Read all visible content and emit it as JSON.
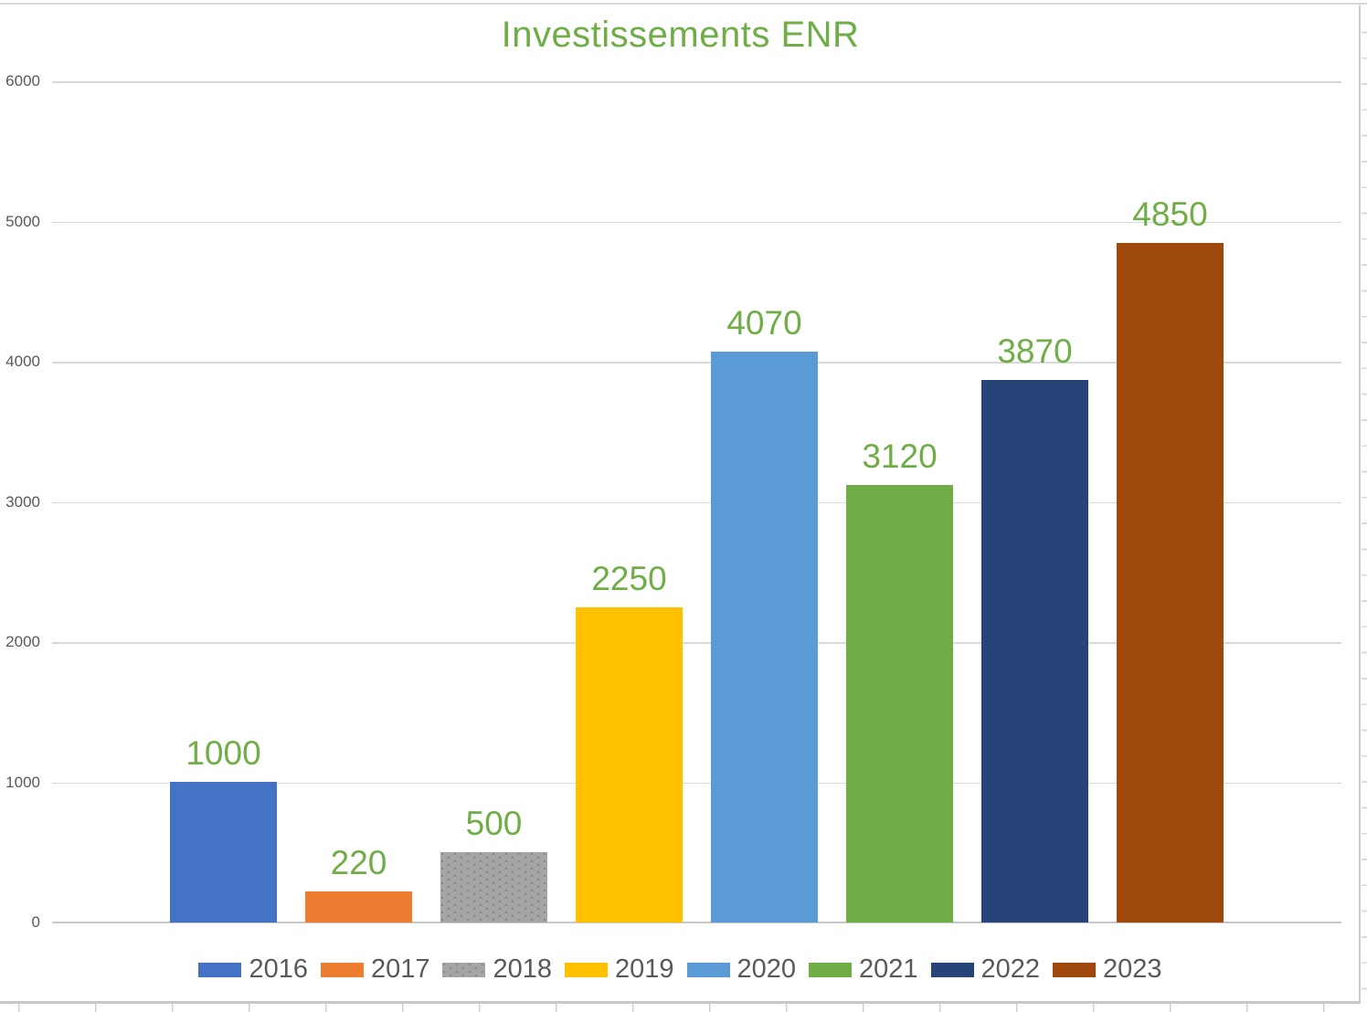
{
  "chart_data": {
    "type": "bar",
    "title": "Investissements ENR",
    "categories": [
      "2016",
      "2017",
      "2018",
      "2019",
      "2020",
      "2021",
      "2022",
      "2023"
    ],
    "values": [
      1000,
      220,
      500,
      2250,
      4070,
      3120,
      3870,
      4850
    ],
    "data_labels": [
      "1000",
      "220",
      "500",
      "2250",
      "4070",
      "3120",
      "3870",
      "4850"
    ],
    "series_colors": [
      "#4472C4",
      "#ED7D31",
      "#A5A5A5",
      "#FFC000",
      "#5B9BD5",
      "#70AD47",
      "#264478",
      "#9E480E"
    ],
    "patterned_series_index": 2,
    "y_ticks": [
      0,
      1000,
      2000,
      3000,
      4000,
      5000,
      6000
    ],
    "y_tick_labels": [
      "0",
      "1000",
      "2000",
      "3000",
      "4000",
      "5000",
      "6000"
    ],
    "ylim": [
      0,
      6000
    ],
    "xlabel": "",
    "ylabel": "",
    "grid": true,
    "legend_position": "bottom",
    "legend_entries": [
      "2016",
      "2017",
      "2018",
      "2019",
      "2020",
      "2021",
      "2022",
      "2023"
    ],
    "colors": {
      "title": "#70AD47",
      "data_label": "#70AD47",
      "axis_text": "#595959",
      "gridline": "#D9D9D9",
      "axis_line": "#C7C7C7"
    }
  }
}
